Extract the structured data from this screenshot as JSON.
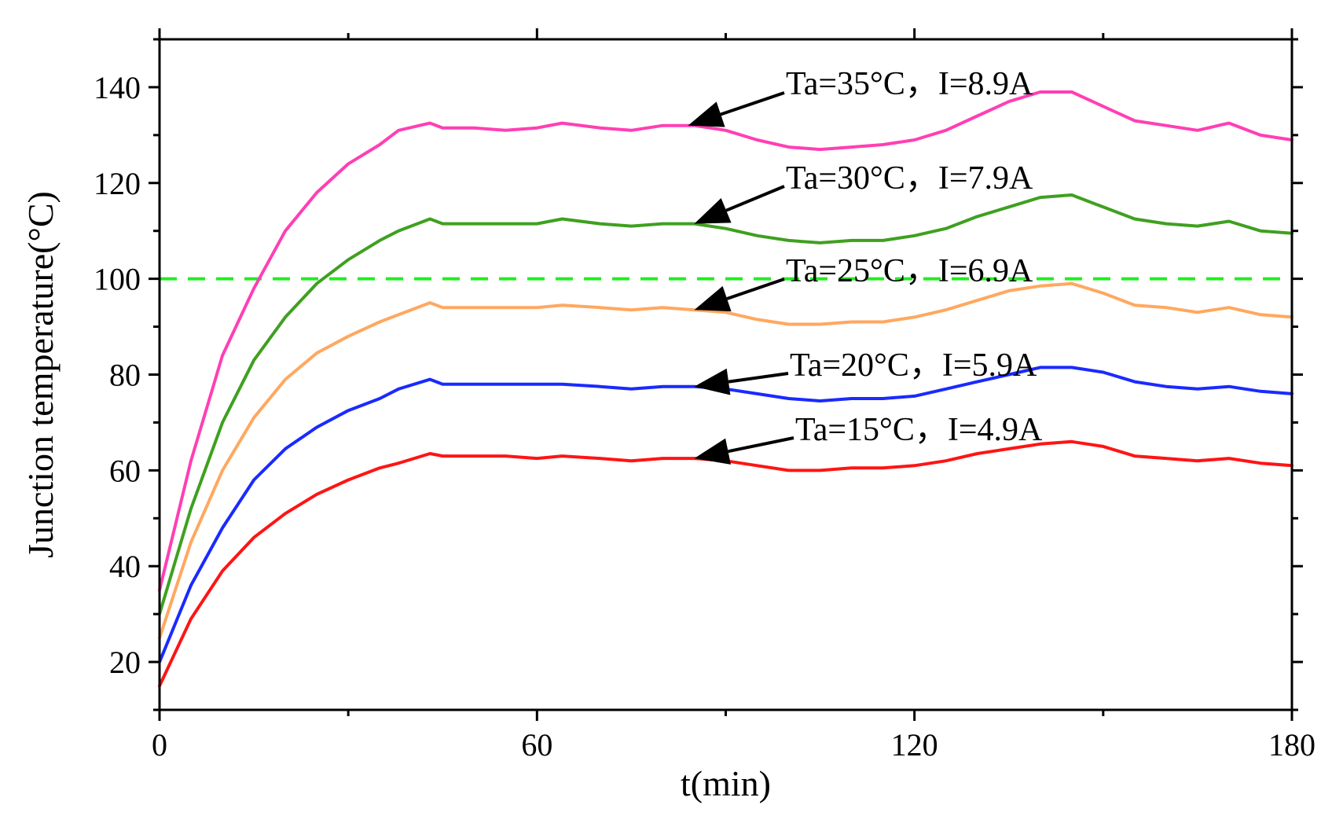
{
  "chart_data": {
    "type": "line",
    "xlabel": "t(min)",
    "ylabel": "Junction temperature(°C)",
    "xlim": [
      0,
      180
    ],
    "ylim": [
      10,
      150
    ],
    "xticks": [
      0,
      60,
      120,
      180
    ],
    "xtick_labels": [
      "0",
      "60",
      "120",
      "180"
    ],
    "yticks": [
      20,
      40,
      60,
      80,
      100,
      120,
      140
    ],
    "ytick_labels": [
      "20",
      "40",
      "60",
      "80",
      "100",
      "120",
      "140"
    ],
    "grid": false,
    "reference_line": {
      "y": 100,
      "style": "dashed",
      "color": "#22ee22"
    },
    "series": [
      {
        "color": "#ff3fb4",
        "annotation": "Ta=35°C，I=8.9A",
        "points": [
          [
            0,
            35
          ],
          [
            5,
            62
          ],
          [
            10,
            84
          ],
          [
            15,
            98
          ],
          [
            20,
            110
          ],
          [
            25,
            118
          ],
          [
            30,
            124
          ],
          [
            35,
            128
          ],
          [
            38,
            131
          ],
          [
            43,
            132.5
          ],
          [
            45,
            131.5
          ],
          [
            50,
            131.5
          ],
          [
            55,
            131
          ],
          [
            60,
            131.5
          ],
          [
            64,
            132.5
          ],
          [
            70,
            131.5
          ],
          [
            75,
            131
          ],
          [
            80,
            132
          ],
          [
            85,
            132
          ],
          [
            90,
            131
          ],
          [
            95,
            129
          ],
          [
            100,
            127.5
          ],
          [
            105,
            127
          ],
          [
            110,
            127.5
          ],
          [
            115,
            128
          ],
          [
            120,
            129
          ],
          [
            125,
            131
          ],
          [
            130,
            134
          ],
          [
            135,
            137
          ],
          [
            140,
            139
          ],
          [
            145,
            139
          ],
          [
            150,
            136
          ],
          [
            155,
            133
          ],
          [
            160,
            132
          ],
          [
            165,
            131
          ],
          [
            170,
            132.5
          ],
          [
            175,
            130
          ],
          [
            180,
            129
          ]
        ]
      },
      {
        "color": "#3fa020",
        "annotation": "Ta=30°C，I=7.9A",
        "points": [
          [
            0,
            30
          ],
          [
            5,
            52
          ],
          [
            10,
            70
          ],
          [
            15,
            83
          ],
          [
            20,
            92
          ],
          [
            25,
            99
          ],
          [
            30,
            104
          ],
          [
            35,
            108
          ],
          [
            38,
            110
          ],
          [
            43,
            112.5
          ],
          [
            45,
            111.5
          ],
          [
            50,
            111.5
          ],
          [
            55,
            111.5
          ],
          [
            60,
            111.5
          ],
          [
            64,
            112.5
          ],
          [
            70,
            111.5
          ],
          [
            75,
            111
          ],
          [
            80,
            111.5
          ],
          [
            85,
            111.5
          ],
          [
            90,
            110.5
          ],
          [
            95,
            109
          ],
          [
            100,
            108
          ],
          [
            105,
            107.5
          ],
          [
            110,
            108
          ],
          [
            115,
            108
          ],
          [
            120,
            109
          ],
          [
            125,
            110.5
          ],
          [
            130,
            113
          ],
          [
            135,
            115
          ],
          [
            140,
            117
          ],
          [
            145,
            117.5
          ],
          [
            150,
            115
          ],
          [
            155,
            112.5
          ],
          [
            160,
            111.5
          ],
          [
            165,
            111
          ],
          [
            170,
            112
          ],
          [
            175,
            110
          ],
          [
            180,
            109.5
          ]
        ]
      },
      {
        "color": "#ffa860",
        "annotation": "Ta=25°C，I=6.9A",
        "points": [
          [
            0,
            25
          ],
          [
            5,
            45
          ],
          [
            10,
            60
          ],
          [
            15,
            71
          ],
          [
            20,
            79
          ],
          [
            25,
            84.5
          ],
          [
            30,
            88
          ],
          [
            35,
            91
          ],
          [
            38,
            92.5
          ],
          [
            43,
            95
          ],
          [
            45,
            94
          ],
          [
            50,
            94
          ],
          [
            55,
            94
          ],
          [
            60,
            94
          ],
          [
            64,
            94.5
          ],
          [
            70,
            94
          ],
          [
            75,
            93.5
          ],
          [
            80,
            94
          ],
          [
            85,
            93.5
          ],
          [
            90,
            93
          ],
          [
            95,
            91.5
          ],
          [
            100,
            90.5
          ],
          [
            105,
            90.5
          ],
          [
            110,
            91
          ],
          [
            115,
            91
          ],
          [
            120,
            92
          ],
          [
            125,
            93.5
          ],
          [
            130,
            95.5
          ],
          [
            135,
            97.5
          ],
          [
            140,
            98.5
          ],
          [
            145,
            99
          ],
          [
            150,
            97
          ],
          [
            155,
            94.5
          ],
          [
            160,
            94
          ],
          [
            165,
            93
          ],
          [
            170,
            94
          ],
          [
            175,
            92.5
          ],
          [
            180,
            92
          ]
        ]
      },
      {
        "color": "#1a2aff",
        "annotation": "Ta=20°C，I=5.9A",
        "points": [
          [
            0,
            20
          ],
          [
            5,
            36
          ],
          [
            10,
            48
          ],
          [
            15,
            58
          ],
          [
            20,
            64.5
          ],
          [
            25,
            69
          ],
          [
            30,
            72.5
          ],
          [
            35,
            75
          ],
          [
            38,
            77
          ],
          [
            43,
            79
          ],
          [
            45,
            78
          ],
          [
            50,
            78
          ],
          [
            55,
            78
          ],
          [
            60,
            78
          ],
          [
            64,
            78
          ],
          [
            70,
            77.5
          ],
          [
            75,
            77
          ],
          [
            80,
            77.5
          ],
          [
            85,
            77.5
          ],
          [
            90,
            77
          ],
          [
            95,
            76
          ],
          [
            100,
            75
          ],
          [
            105,
            74.5
          ],
          [
            110,
            75
          ],
          [
            115,
            75
          ],
          [
            120,
            75.5
          ],
          [
            125,
            77
          ],
          [
            130,
            78.5
          ],
          [
            135,
            80
          ],
          [
            140,
            81.5
          ],
          [
            145,
            81.5
          ],
          [
            150,
            80.5
          ],
          [
            155,
            78.5
          ],
          [
            160,
            77.5
          ],
          [
            165,
            77
          ],
          [
            170,
            77.5
          ],
          [
            175,
            76.5
          ],
          [
            180,
            76
          ]
        ]
      },
      {
        "color": "#ff1414",
        "annotation": "Ta=15°C，I=4.9A",
        "points": [
          [
            0,
            15
          ],
          [
            5,
            29
          ],
          [
            10,
            39
          ],
          [
            15,
            46
          ],
          [
            20,
            51
          ],
          [
            25,
            55
          ],
          [
            30,
            58
          ],
          [
            35,
            60.5
          ],
          [
            38,
            61.5
          ],
          [
            43,
            63.5
          ],
          [
            45,
            63
          ],
          [
            50,
            63
          ],
          [
            55,
            63
          ],
          [
            60,
            62.5
          ],
          [
            64,
            63
          ],
          [
            70,
            62.5
          ],
          [
            75,
            62
          ],
          [
            80,
            62.5
          ],
          [
            85,
            62.5
          ],
          [
            90,
            62
          ],
          [
            95,
            61
          ],
          [
            100,
            60
          ],
          [
            105,
            60
          ],
          [
            110,
            60.5
          ],
          [
            115,
            60.5
          ],
          [
            120,
            61
          ],
          [
            125,
            62
          ],
          [
            130,
            63.5
          ],
          [
            135,
            64.5
          ],
          [
            140,
            65.5
          ],
          [
            145,
            66
          ],
          [
            150,
            65
          ],
          [
            155,
            63
          ],
          [
            160,
            62.5
          ],
          [
            165,
            62
          ],
          [
            170,
            62.5
          ],
          [
            175,
            61.5
          ],
          [
            180,
            61
          ]
        ]
      }
    ],
    "annotations": [
      {
        "text": "Ta=35°C，I=8.9A",
        "arrow_to": [
          84,
          132
        ]
      },
      {
        "text": "Ta=30°C，I=7.9A",
        "arrow_to": [
          85,
          111.5
        ]
      },
      {
        "text": "Ta=25°C，I=6.9A",
        "arrow_to": [
          85,
          93.5
        ]
      },
      {
        "text": "Ta=20°C，I=5.9A",
        "arrow_to": [
          85,
          77.5
        ]
      },
      {
        "text": "Ta=15°C，I=4.9A",
        "arrow_to": [
          85,
          62.5
        ]
      }
    ]
  }
}
